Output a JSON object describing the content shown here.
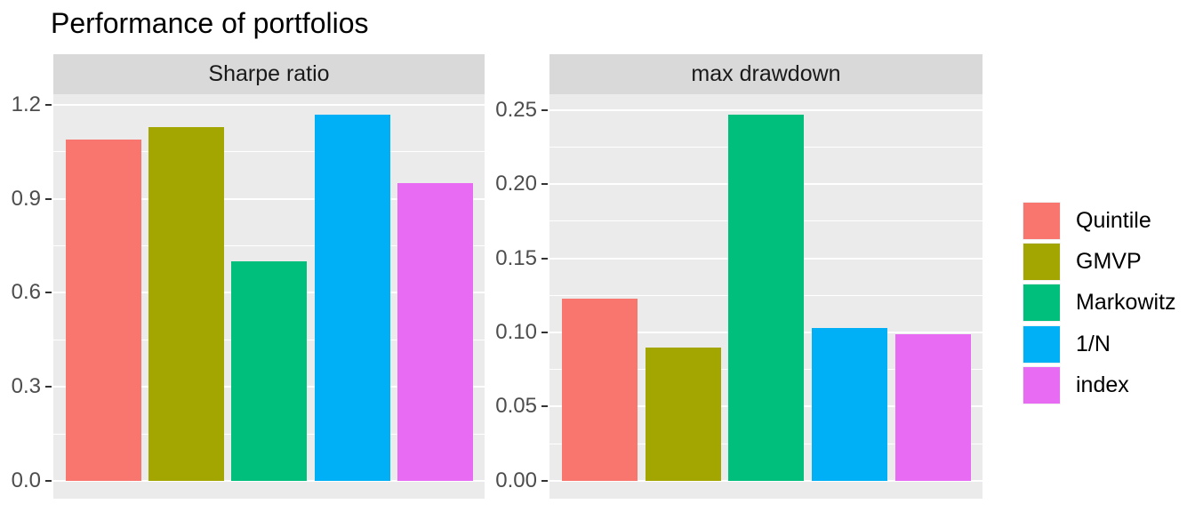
{
  "title": "Performance of portfolios",
  "chart_data": {
    "type": "bar",
    "title": "Performance of portfolios",
    "xlabel": "",
    "ylabel": "",
    "grid": true,
    "categories": [
      "Quintile",
      "GMVP",
      "Markowitz",
      "1/N",
      "index"
    ],
    "palette": [
      "#F8766D",
      "#A3A500",
      "#00BF7D",
      "#00B0F6",
      "#E76BF3"
    ],
    "facets": [
      {
        "label": "Sharpe ratio",
        "values": [
          1.09,
          1.13,
          0.7,
          1.17,
          0.95
        ],
        "tick_labels": [
          "0.0",
          "0.3",
          "0.6",
          "0.9",
          "1.2"
        ],
        "tick_values": [
          0,
          0.3,
          0.6,
          0.9,
          1.2
        ],
        "ydomain": [
          -0.0567,
          1.234
        ]
      },
      {
        "label": "max drawdown",
        "values": [
          0.123,
          0.09,
          0.247,
          0.103,
          0.099
        ],
        "tick_labels": [
          "0.00",
          "0.05",
          "0.10",
          "0.15",
          "0.20",
          "0.25"
        ],
        "tick_values": [
          0,
          0.05,
          0.1,
          0.15,
          0.2,
          0.25
        ],
        "ydomain": [
          -0.012,
          0.2605
        ]
      }
    ],
    "legend": {
      "position": "right",
      "entries": [
        "Quintile",
        "GMVP",
        "Markowitz",
        "1/N",
        "index"
      ]
    },
    "style": {
      "panel_bg": "#EBEBEB",
      "strip_bg": "#D9D9D9",
      "grid_color": "#FFFFFF",
      "axis_text_color": "#4D4D4D",
      "strip_text_color": "#1A1A1A",
      "title_color": "#000000"
    }
  }
}
